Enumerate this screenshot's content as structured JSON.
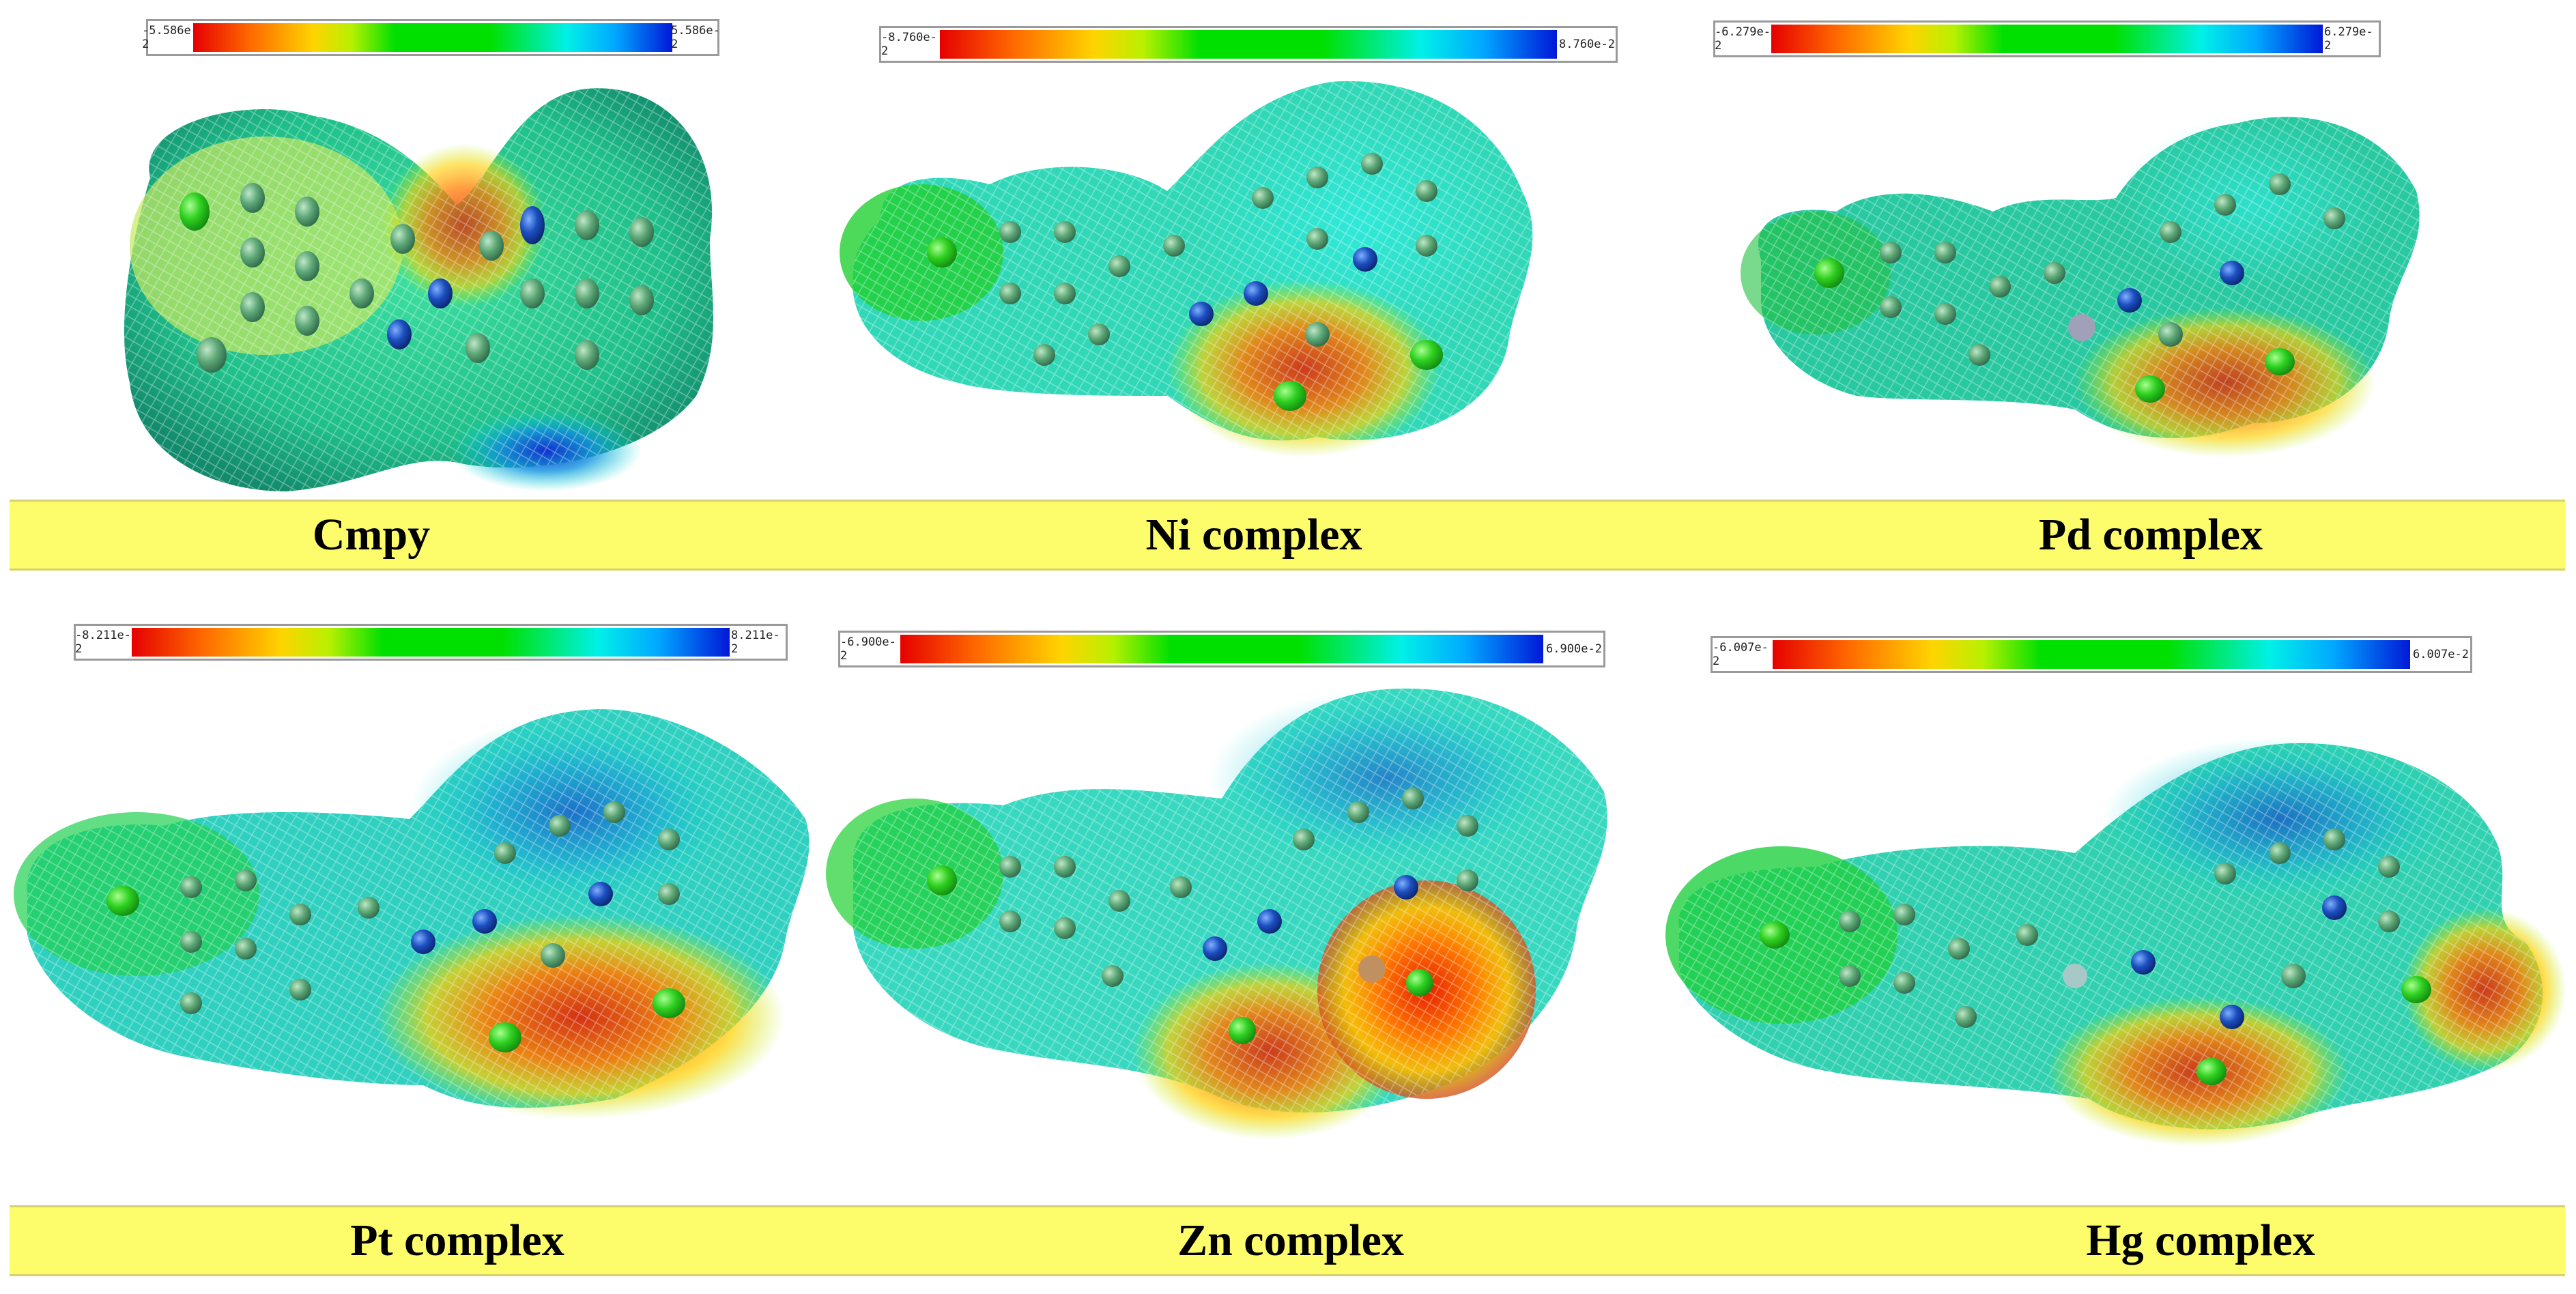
{
  "gradient": {
    "colors": [
      "#e60000",
      "#ff6a00",
      "#ffd400",
      "#b8f000",
      "#00e000",
      "#00e000",
      "#00f0e8",
      "#00a8ff",
      "#0018d8"
    ]
  },
  "panels": [
    {
      "id": "cmpy",
      "title": "Cmpy",
      "min_label": "-5.586e-2",
      "max_label": "5.586e-2"
    },
    {
      "id": "ni",
      "title": "Ni complex",
      "min_label": "-8.760e-2",
      "max_label": "8.760e-2"
    },
    {
      "id": "pd",
      "title": "Pd complex",
      "min_label": "-6.279e-2",
      "max_label": "6.279e-2"
    },
    {
      "id": "pt",
      "title": "Pt complex",
      "min_label": "-8.211e-2",
      "max_label": "8.211e-2"
    },
    {
      "id": "zn",
      "title": "Zn complex",
      "min_label": "-6.900e-2",
      "max_label": "6.900e-2"
    },
    {
      "id": "hg",
      "title": "Hg complex",
      "min_label": "-6.007e-2",
      "max_label": "6.007e-2"
    }
  ]
}
